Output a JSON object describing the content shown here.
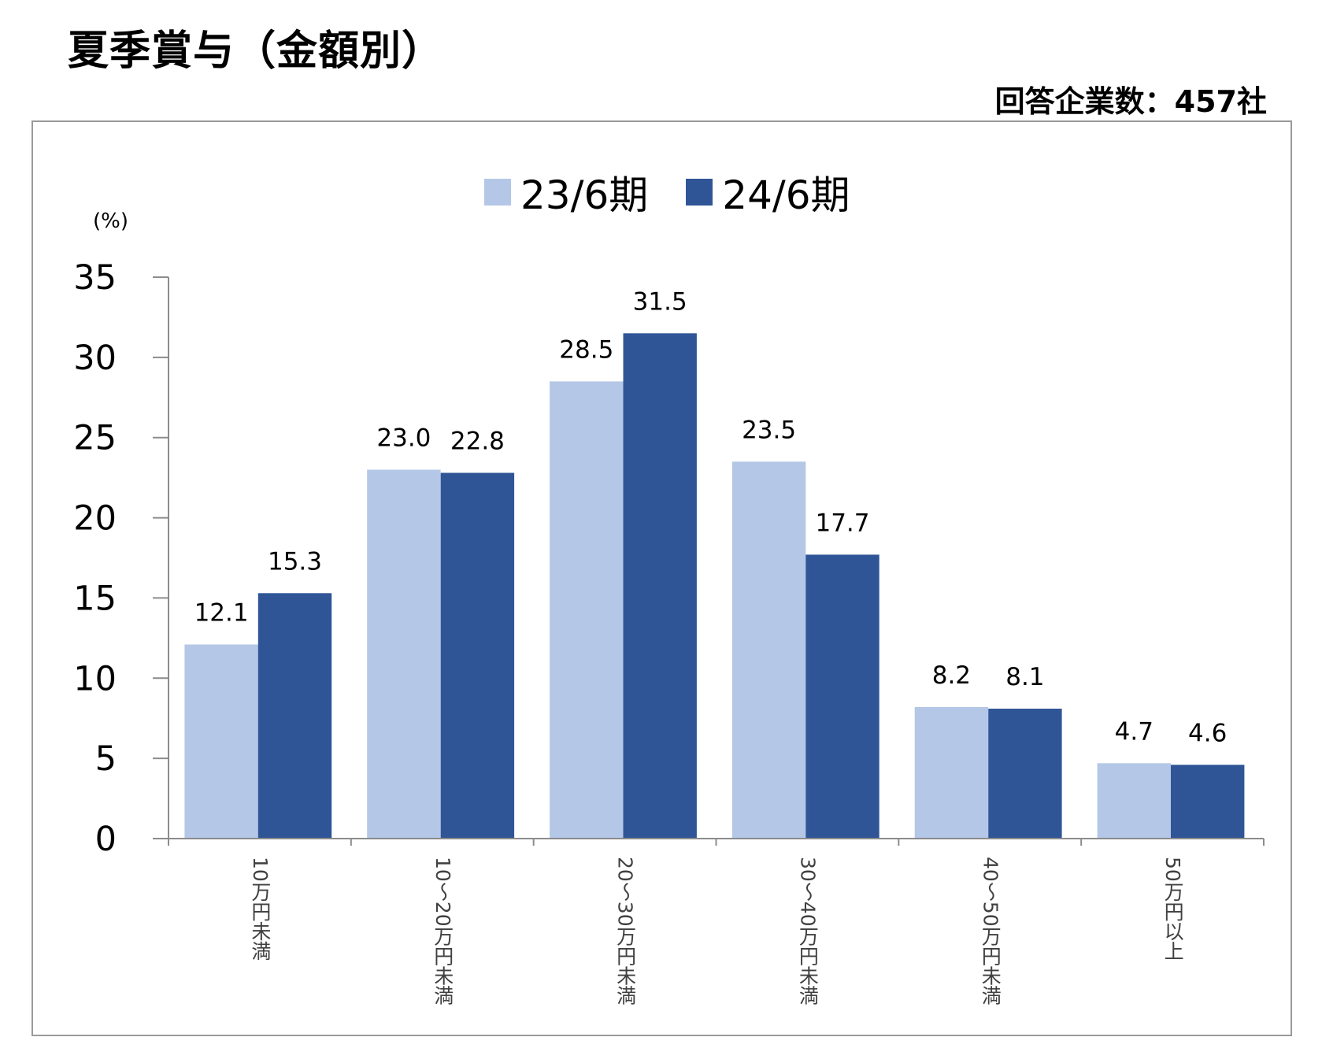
{
  "title": "夏季賞与（金額別）",
  "respondents": "回答企業数：457社",
  "chart_data": {
    "type": "bar",
    "categories": [
      "10万円未満",
      "10～20万円未満",
      "20～30万円未満",
      "30～40万円未満",
      "40～50万円未満",
      "50万円以上"
    ],
    "series": [
      {
        "name": "23/6期",
        "values": [
          12.1,
          23.0,
          28.5,
          23.5,
          8.2,
          4.7
        ],
        "color": "#B4C7E7"
      },
      {
        "name": "24/6期",
        "values": [
          15.3,
          22.8,
          31.5,
          17.7,
          8.1,
          4.6
        ],
        "color": "#2F5597"
      }
    ],
    "ylabel": "(%)",
    "xlabel": "",
    "ylim": [
      0,
      35
    ],
    "yticks": [
      0,
      5,
      10,
      15,
      20,
      25,
      30,
      35
    ],
    "grid": false,
    "legend_position": "top-center"
  }
}
